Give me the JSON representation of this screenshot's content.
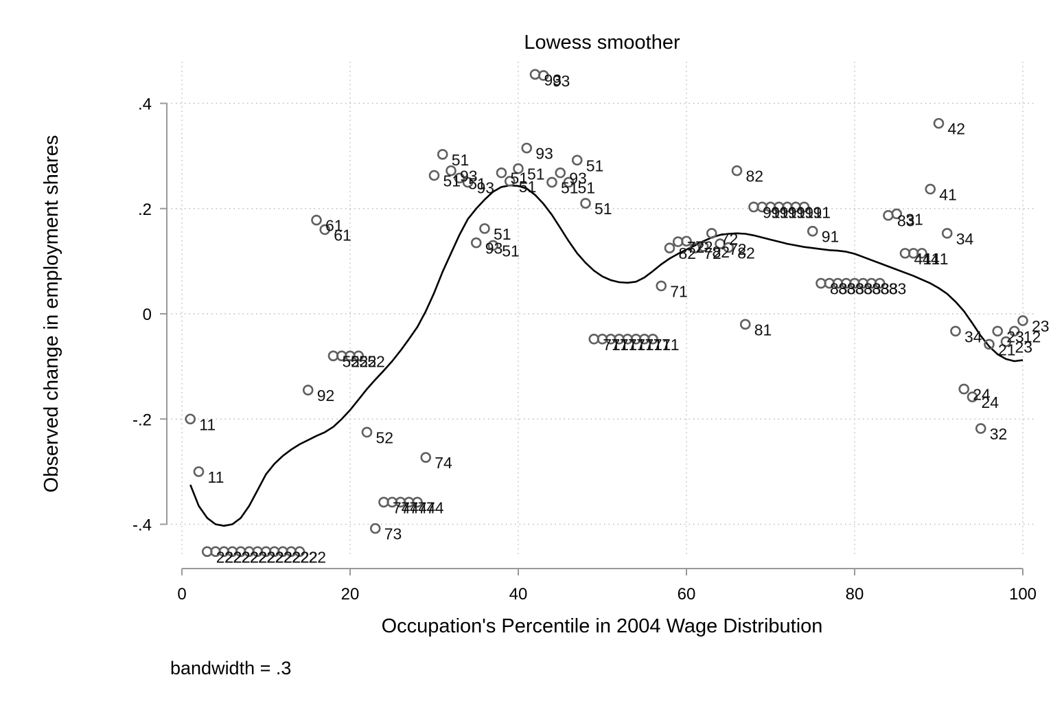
{
  "chart_data": {
    "type": "scatter",
    "title": "Lowess smoother",
    "xlabel": "Occupation's Percentile in 2004 Wage Distribution",
    "ylabel": "Observed change in employment shares",
    "note": "bandwidth = .3",
    "xlim": [
      0,
      100
    ],
    "ylim": [
      -0.45,
      0.45
    ],
    "xticks": [
      0,
      20,
      40,
      60,
      80,
      100
    ],
    "xtick_labels": [
      "0",
      "20",
      "40",
      "60",
      "80",
      "100"
    ],
    "yticks": [
      -0.4,
      -0.2,
      0,
      0.2,
      0.4
    ],
    "ytick_labels": [
      "-.4",
      "-.2",
      "0",
      ".2",
      ".4"
    ],
    "grid": true,
    "colors": {
      "marker": "#606060",
      "line": "#000000",
      "grid": "#b8b8b8",
      "axis": "#999999"
    },
    "points": [
      {
        "x": 1,
        "y": -0.2,
        "label": "11"
      },
      {
        "x": 2,
        "y": -0.3,
        "label": "11"
      },
      {
        "x": 3,
        "y": -0.452,
        "label": "22"
      },
      {
        "x": 4,
        "y": -0.452,
        "label": "22"
      },
      {
        "x": 5,
        "y": -0.452,
        "label": "22"
      },
      {
        "x": 6,
        "y": -0.452,
        "label": "22"
      },
      {
        "x": 7,
        "y": -0.452,
        "label": "22"
      },
      {
        "x": 8,
        "y": -0.452,
        "label": "22"
      },
      {
        "x": 9,
        "y": -0.452,
        "label": "22"
      },
      {
        "x": 10,
        "y": -0.452,
        "label": "22"
      },
      {
        "x": 11,
        "y": -0.452,
        "label": "22"
      },
      {
        "x": 12,
        "y": -0.452,
        "label": "22"
      },
      {
        "x": 13,
        "y": -0.452,
        "label": "22"
      },
      {
        "x": 14,
        "y": -0.452,
        "label": "22"
      },
      {
        "x": 15,
        "y": -0.145,
        "label": "92"
      },
      {
        "x": 16,
        "y": 0.178,
        "label": "61"
      },
      {
        "x": 17,
        "y": 0.16,
        "label": "61"
      },
      {
        "x": 18,
        "y": -0.08,
        "label": "52"
      },
      {
        "x": 19,
        "y": -0.08,
        "label": "52"
      },
      {
        "x": 20,
        "y": -0.08,
        "label": "52"
      },
      {
        "x": 21,
        "y": -0.08,
        "label": "52"
      },
      {
        "x": 22,
        "y": -0.225,
        "label": "52"
      },
      {
        "x": 23,
        "y": -0.408,
        "label": "73"
      },
      {
        "x": 24,
        "y": -0.358,
        "label": "74"
      },
      {
        "x": 25,
        "y": -0.358,
        "label": "74"
      },
      {
        "x": 26,
        "y": -0.358,
        "label": "74"
      },
      {
        "x": 27,
        "y": -0.358,
        "label": "74"
      },
      {
        "x": 28,
        "y": -0.358,
        "label": "74"
      },
      {
        "x": 29,
        "y": -0.273,
        "label": "74"
      },
      {
        "x": 30,
        "y": 0.263,
        "label": "51"
      },
      {
        "x": 31,
        "y": 0.303,
        "label": "51"
      },
      {
        "x": 32,
        "y": 0.272,
        "label": "93"
      },
      {
        "x": 33,
        "y": 0.258,
        "label": "51"
      },
      {
        "x": 34,
        "y": 0.25,
        "label": "93"
      },
      {
        "x": 35,
        "y": 0.135,
        "label": "93"
      },
      {
        "x": 36,
        "y": 0.162,
        "label": "51"
      },
      {
        "x": 37,
        "y": 0.13,
        "label": "51"
      },
      {
        "x": 38,
        "y": 0.268,
        "label": "51"
      },
      {
        "x": 39,
        "y": 0.252,
        "label": "51"
      },
      {
        "x": 40,
        "y": 0.276,
        "label": "51"
      },
      {
        "x": 41,
        "y": 0.315,
        "label": "93"
      },
      {
        "x": 42,
        "y": 0.455,
        "label": "93"
      },
      {
        "x": 43,
        "y": 0.453,
        "label": "93"
      },
      {
        "x": 44,
        "y": 0.25,
        "label": "51"
      },
      {
        "x": 45,
        "y": 0.268,
        "label": "93"
      },
      {
        "x": 46,
        "y": 0.25,
        "label": "51"
      },
      {
        "x": 47,
        "y": 0.292,
        "label": "51"
      },
      {
        "x": 48,
        "y": 0.21,
        "label": "51"
      },
      {
        "x": 49,
        "y": -0.048,
        "label": "71"
      },
      {
        "x": 50,
        "y": -0.048,
        "label": "71"
      },
      {
        "x": 51,
        "y": -0.048,
        "label": "71"
      },
      {
        "x": 52,
        "y": -0.048,
        "label": "71"
      },
      {
        "x": 53,
        "y": -0.048,
        "label": "71"
      },
      {
        "x": 54,
        "y": -0.048,
        "label": "71"
      },
      {
        "x": 55,
        "y": -0.048,
        "label": "71"
      },
      {
        "x": 56,
        "y": -0.048,
        "label": "71"
      },
      {
        "x": 57,
        "y": 0.053,
        "label": "71"
      },
      {
        "x": 58,
        "y": 0.125,
        "label": "82"
      },
      {
        "x": 59,
        "y": 0.137,
        "label": "72"
      },
      {
        "x": 60,
        "y": 0.138,
        "label": "72"
      },
      {
        "x": 61,
        "y": 0.125,
        "label": "72"
      },
      {
        "x": 62,
        "y": 0.128,
        "label": "82"
      },
      {
        "x": 63,
        "y": 0.153,
        "label": "72"
      },
      {
        "x": 64,
        "y": 0.133,
        "label": "72"
      },
      {
        "x": 65,
        "y": 0.126,
        "label": "82"
      },
      {
        "x": 66,
        "y": 0.272,
        "label": "82"
      },
      {
        "x": 67,
        "y": -0.02,
        "label": "81"
      },
      {
        "x": 68,
        "y": 0.203,
        "label": "91"
      },
      {
        "x": 69,
        "y": 0.203,
        "label": "91"
      },
      {
        "x": 70,
        "y": 0.203,
        "label": "91"
      },
      {
        "x": 71,
        "y": 0.203,
        "label": "91"
      },
      {
        "x": 72,
        "y": 0.203,
        "label": "91"
      },
      {
        "x": 73,
        "y": 0.203,
        "label": "91"
      },
      {
        "x": 74,
        "y": 0.203,
        "label": "91"
      },
      {
        "x": 75,
        "y": 0.157,
        "label": "91"
      },
      {
        "x": 76,
        "y": 0.058,
        "label": "83"
      },
      {
        "x": 77,
        "y": 0.058,
        "label": "83"
      },
      {
        "x": 78,
        "y": 0.058,
        "label": "83"
      },
      {
        "x": 79,
        "y": 0.058,
        "label": "83"
      },
      {
        "x": 80,
        "y": 0.058,
        "label": "83"
      },
      {
        "x": 81,
        "y": 0.058,
        "label": "83"
      },
      {
        "x": 82,
        "y": 0.058,
        "label": "83"
      },
      {
        "x": 83,
        "y": 0.058,
        "label": "83"
      },
      {
        "x": 84,
        "y": 0.187,
        "label": "83"
      },
      {
        "x": 85,
        "y": 0.19,
        "label": "31"
      },
      {
        "x": 86,
        "y": 0.115,
        "label": "41"
      },
      {
        "x": 87,
        "y": 0.115,
        "label": "41"
      },
      {
        "x": 88,
        "y": 0.115,
        "label": "41"
      },
      {
        "x": 89,
        "y": 0.237,
        "label": "41"
      },
      {
        "x": 90,
        "y": 0.362,
        "label": "42"
      },
      {
        "x": 91,
        "y": 0.153,
        "label": "34"
      },
      {
        "x": 92,
        "y": -0.033,
        "label": "34"
      },
      {
        "x": 93,
        "y": -0.143,
        "label": "24"
      },
      {
        "x": 94,
        "y": -0.158,
        "label": "24"
      },
      {
        "x": 95,
        "y": -0.218,
        "label": "32"
      },
      {
        "x": 96,
        "y": -0.058,
        "label": "21"
      },
      {
        "x": 97,
        "y": -0.033,
        "label": "23"
      },
      {
        "x": 98,
        "y": -0.053,
        "label": "23"
      },
      {
        "x": 99,
        "y": -0.033,
        "label": "12"
      },
      {
        "x": 100,
        "y": -0.013,
        "label": "23"
      }
    ],
    "lowess": [
      [
        1,
        -0.325
      ],
      [
        2,
        -0.365
      ],
      [
        3,
        -0.388
      ],
      [
        4,
        -0.4
      ],
      [
        5,
        -0.403
      ],
      [
        6,
        -0.4
      ],
      [
        7,
        -0.388
      ],
      [
        8,
        -0.365
      ],
      [
        9,
        -0.335
      ],
      [
        10,
        -0.305
      ],
      [
        11,
        -0.285
      ],
      [
        12,
        -0.27
      ],
      [
        13,
        -0.258
      ],
      [
        14,
        -0.248
      ],
      [
        15,
        -0.24
      ],
      [
        16,
        -0.232
      ],
      [
        17,
        -0.225
      ],
      [
        18,
        -0.215
      ],
      [
        19,
        -0.2
      ],
      [
        20,
        -0.183
      ],
      [
        21,
        -0.163
      ],
      [
        22,
        -0.143
      ],
      [
        23,
        -0.125
      ],
      [
        24,
        -0.108
      ],
      [
        25,
        -0.09
      ],
      [
        26,
        -0.07
      ],
      [
        27,
        -0.048
      ],
      [
        28,
        -0.025
      ],
      [
        29,
        0.005
      ],
      [
        30,
        0.04
      ],
      [
        31,
        0.08
      ],
      [
        32,
        0.115
      ],
      [
        33,
        0.15
      ],
      [
        34,
        0.18
      ],
      [
        35,
        0.2
      ],
      [
        36,
        0.217
      ],
      [
        37,
        0.232
      ],
      [
        38,
        0.241
      ],
      [
        39,
        0.244
      ],
      [
        40,
        0.243
      ],
      [
        41,
        0.238
      ],
      [
        42,
        0.226
      ],
      [
        43,
        0.209
      ],
      [
        44,
        0.188
      ],
      [
        45,
        0.163
      ],
      [
        46,
        0.138
      ],
      [
        47,
        0.115
      ],
      [
        48,
        0.097
      ],
      [
        49,
        0.082
      ],
      [
        50,
        0.071
      ],
      [
        51,
        0.064
      ],
      [
        52,
        0.06
      ],
      [
        53,
        0.059
      ],
      [
        54,
        0.061
      ],
      [
        55,
        0.069
      ],
      [
        56,
        0.081
      ],
      [
        57,
        0.094
      ],
      [
        58,
        0.105
      ],
      [
        59,
        0.114
      ],
      [
        60,
        0.122
      ],
      [
        61,
        0.13
      ],
      [
        62,
        0.138
      ],
      [
        63,
        0.145
      ],
      [
        64,
        0.15
      ],
      [
        65,
        0.152
      ],
      [
        66,
        0.153
      ],
      [
        67,
        0.152
      ],
      [
        68,
        0.149
      ],
      [
        69,
        0.145
      ],
      [
        70,
        0.141
      ],
      [
        71,
        0.137
      ],
      [
        72,
        0.133
      ],
      [
        73,
        0.13
      ],
      [
        74,
        0.127
      ],
      [
        75,
        0.125
      ],
      [
        76,
        0.123
      ],
      [
        77,
        0.121
      ],
      [
        78,
        0.12
      ],
      [
        79,
        0.118
      ],
      [
        80,
        0.114
      ],
      [
        81,
        0.108
      ],
      [
        82,
        0.102
      ],
      [
        83,
        0.096
      ],
      [
        84,
        0.09
      ],
      [
        85,
        0.084
      ],
      [
        86,
        0.078
      ],
      [
        87,
        0.072
      ],
      [
        88,
        0.065
      ],
      [
        89,
        0.058
      ],
      [
        90,
        0.049
      ],
      [
        91,
        0.038
      ],
      [
        92,
        0.023
      ],
      [
        93,
        0.005
      ],
      [
        94,
        -0.018
      ],
      [
        95,
        -0.042
      ],
      [
        96,
        -0.062
      ],
      [
        97,
        -0.077
      ],
      [
        98,
        -0.086
      ],
      [
        99,
        -0.09
      ],
      [
        100,
        -0.088
      ]
    ]
  }
}
